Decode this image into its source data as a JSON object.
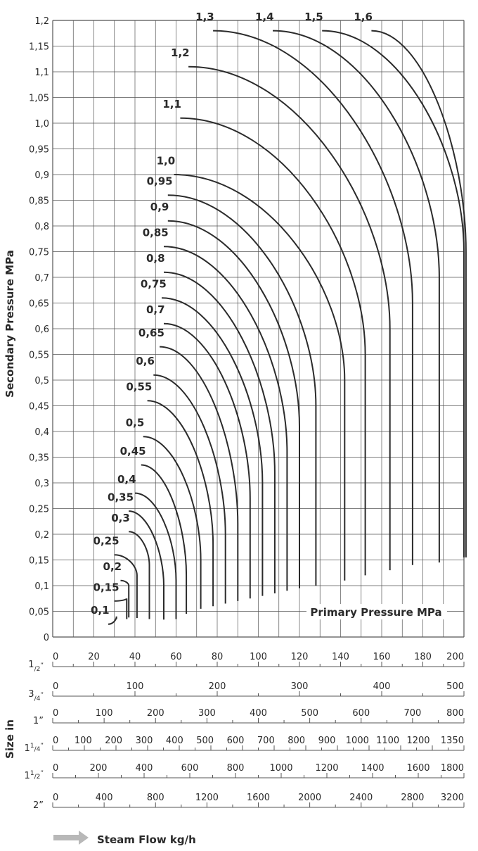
{
  "chart_data": {
    "type": "line",
    "ylabel": "Secondary Pressure MPa",
    "xlabel": "Primary Pressure MPa",
    "flow_label": "Steam Flow kg/h",
    "size_label": "Size in",
    "xlim": [
      0,
      200
    ],
    "ylim": [
      0,
      1.2
    ],
    "grid": true,
    "y_ticks": [
      "0",
      "0,05",
      "0,1",
      "0,15",
      "0,2",
      "0,25",
      "0,3",
      "0,35",
      "0,4",
      "0,45",
      "0,5",
      "0,55",
      "0,6",
      "0,65",
      "0,7",
      "0,75",
      "0,8",
      "0,85",
      "0,9",
      "0,95",
      "1,0",
      "1,05",
      "1,1",
      "1,15",
      "1,2"
    ],
    "series": [
      {
        "name": "0,1",
        "x_end": 31,
        "y_top": 0.04,
        "y_bottom": 0.035,
        "x_label": 23,
        "y_label": 0.045
      },
      {
        "name": "0,15",
        "x_end": 36,
        "y_top": 0.075,
        "y_bottom": 0.035,
        "x_label": 26,
        "y_label": 0.09
      },
      {
        "name": "0,2",
        "x_end": 37,
        "y_top": 0.1,
        "y_bottom": 0.038,
        "x_label": 29,
        "y_label": 0.13
      },
      {
        "name": "0,25",
        "x_end": 41,
        "y_top": 0.12,
        "y_bottom": 0.037,
        "x_label": 26,
        "y_label": 0.18
      },
      {
        "name": "0,3",
        "x_end": 47,
        "y_top": 0.14,
        "y_bottom": 0.035,
        "x_label": 33,
        "y_label": 0.225
      },
      {
        "name": "0,35",
        "x_end": 54,
        "y_top": 0.1,
        "y_bottom": 0.034,
        "x_label": 33,
        "y_label": 0.265
      },
      {
        "name": "0,4",
        "x_end": 60,
        "y_top": 0.11,
        "y_bottom": 0.035,
        "x_label": 36,
        "y_label": 0.3
      },
      {
        "name": "0,45",
        "x_end": 65,
        "y_top": 0.12,
        "y_bottom": 0.045,
        "x_label": 39,
        "y_label": 0.355
      },
      {
        "name": "0,5",
        "x_end": 72,
        "y_top": 0.15,
        "y_bottom": 0.055,
        "x_label": 40,
        "y_label": 0.41
      },
      {
        "name": "0,55",
        "x_end": 78,
        "y_top": 0.18,
        "y_bottom": 0.06,
        "x_label": 42,
        "y_label": 0.48
      },
      {
        "name": "0,6",
        "x_end": 84,
        "y_top": 0.2,
        "y_bottom": 0.065,
        "x_label": 45,
        "y_label": 0.53
      },
      {
        "name": "0,65",
        "x_end": 90,
        "y_top": 0.22,
        "y_bottom": 0.07,
        "x_label": 48,
        "y_label": 0.585
      },
      {
        "name": "0,7",
        "x_end": 96,
        "y_top": 0.27,
        "y_bottom": 0.075,
        "x_label": 50,
        "y_label": 0.63
      },
      {
        "name": "0,75",
        "x_end": 102,
        "y_top": 0.3,
        "y_bottom": 0.08,
        "x_label": 49,
        "y_label": 0.68
      },
      {
        "name": "0,8",
        "x_end": 108,
        "y_top": 0.32,
        "y_bottom": 0.085,
        "x_label": 50,
        "y_label": 0.73
      },
      {
        "name": "0,85",
        "x_end": 114,
        "y_top": 0.36,
        "y_bottom": 0.09,
        "x_label": 50,
        "y_label": 0.78
      },
      {
        "name": "0,9",
        "x_end": 120,
        "y_top": 0.41,
        "y_bottom": 0.095,
        "x_label": 52,
        "y_label": 0.83
      },
      {
        "name": "0,95",
        "x_end": 128,
        "y_top": 0.45,
        "y_bottom": 0.1,
        "x_label": 52,
        "y_label": 0.88
      },
      {
        "name": "1,0",
        "x_end": 142,
        "y_top": 0.5,
        "y_bottom": 0.11,
        "x_label": 55,
        "y_label": 0.92
      },
      {
        "name": "1,1",
        "x_end": 152,
        "y_top": 0.55,
        "y_bottom": 0.12,
        "x_label": 58,
        "y_label": 1.03
      },
      {
        "name": "1,2",
        "x_end": 164,
        "y_top": 0.6,
        "y_bottom": 0.13,
        "x_label": 62,
        "y_label": 1.13
      },
      {
        "name": "1,3",
        "x_end": 175,
        "y_top": 0.65,
        "y_bottom": 0.14,
        "x_label": 74,
        "y_label": 1.2
      },
      {
        "name": "1,4",
        "x_end": 188,
        "y_top": 0.7,
        "y_bottom": 0.145,
        "x_label": 103,
        "y_label": 1.2
      },
      {
        "name": "1,5",
        "x_end": 200,
        "y_top": 0.75,
        "y_bottom": 0.155,
        "x_label": 127,
        "y_label": 1.2
      },
      {
        "name": "1,6",
        "x_end": 201,
        "y_top": 0.75,
        "y_bottom": 0.155,
        "x_label": 151,
        "y_label": 1.2
      }
    ],
    "size_axes": [
      {
        "label_main": "1",
        "label_sup": "/",
        "label_sub": "2",
        "suffix": "”",
        "max": 200,
        "ticks": [
          "0",
          "20",
          "40",
          "60",
          "80",
          "100",
          "120",
          "140",
          "160",
          "180",
          "200"
        ]
      },
      {
        "label_main": "3",
        "label_sup": "/",
        "label_sub": "4",
        "suffix": "”",
        "max": 500,
        "ticks": [
          "0",
          "100",
          "200",
          "300",
          "400",
          "500"
        ]
      },
      {
        "label_main": "1",
        "label_sup": "",
        "label_sub": "",
        "suffix": "”",
        "max": 800,
        "ticks": [
          "0",
          "100",
          "200",
          "300",
          "400",
          "500",
          "600",
          "700",
          "800"
        ]
      },
      {
        "label_main": "1",
        "label_sup": "1",
        "label_sub": "4",
        "suffix": "”",
        "max": 1350,
        "ticks": [
          "0",
          "100",
          "200",
          "300",
          "400",
          "500",
          "600",
          "700",
          "800",
          "900",
          "1000",
          "1100",
          "1200",
          "1350"
        ]
      },
      {
        "label_main": "1",
        "label_sup": "1",
        "label_sub": "2",
        "suffix": "”",
        "max": 1800,
        "ticks": [
          "0",
          "200",
          "400",
          "600",
          "800",
          "1000",
          "1200",
          "1400",
          "1600",
          "1800"
        ]
      },
      {
        "label_main": "2",
        "label_sup": "",
        "label_sub": "",
        "suffix": "”",
        "max": 3200,
        "ticks": [
          "0",
          "400",
          "800",
          "1200",
          "1600",
          "2000",
          "2400",
          "2800",
          "3200"
        ]
      }
    ]
  }
}
